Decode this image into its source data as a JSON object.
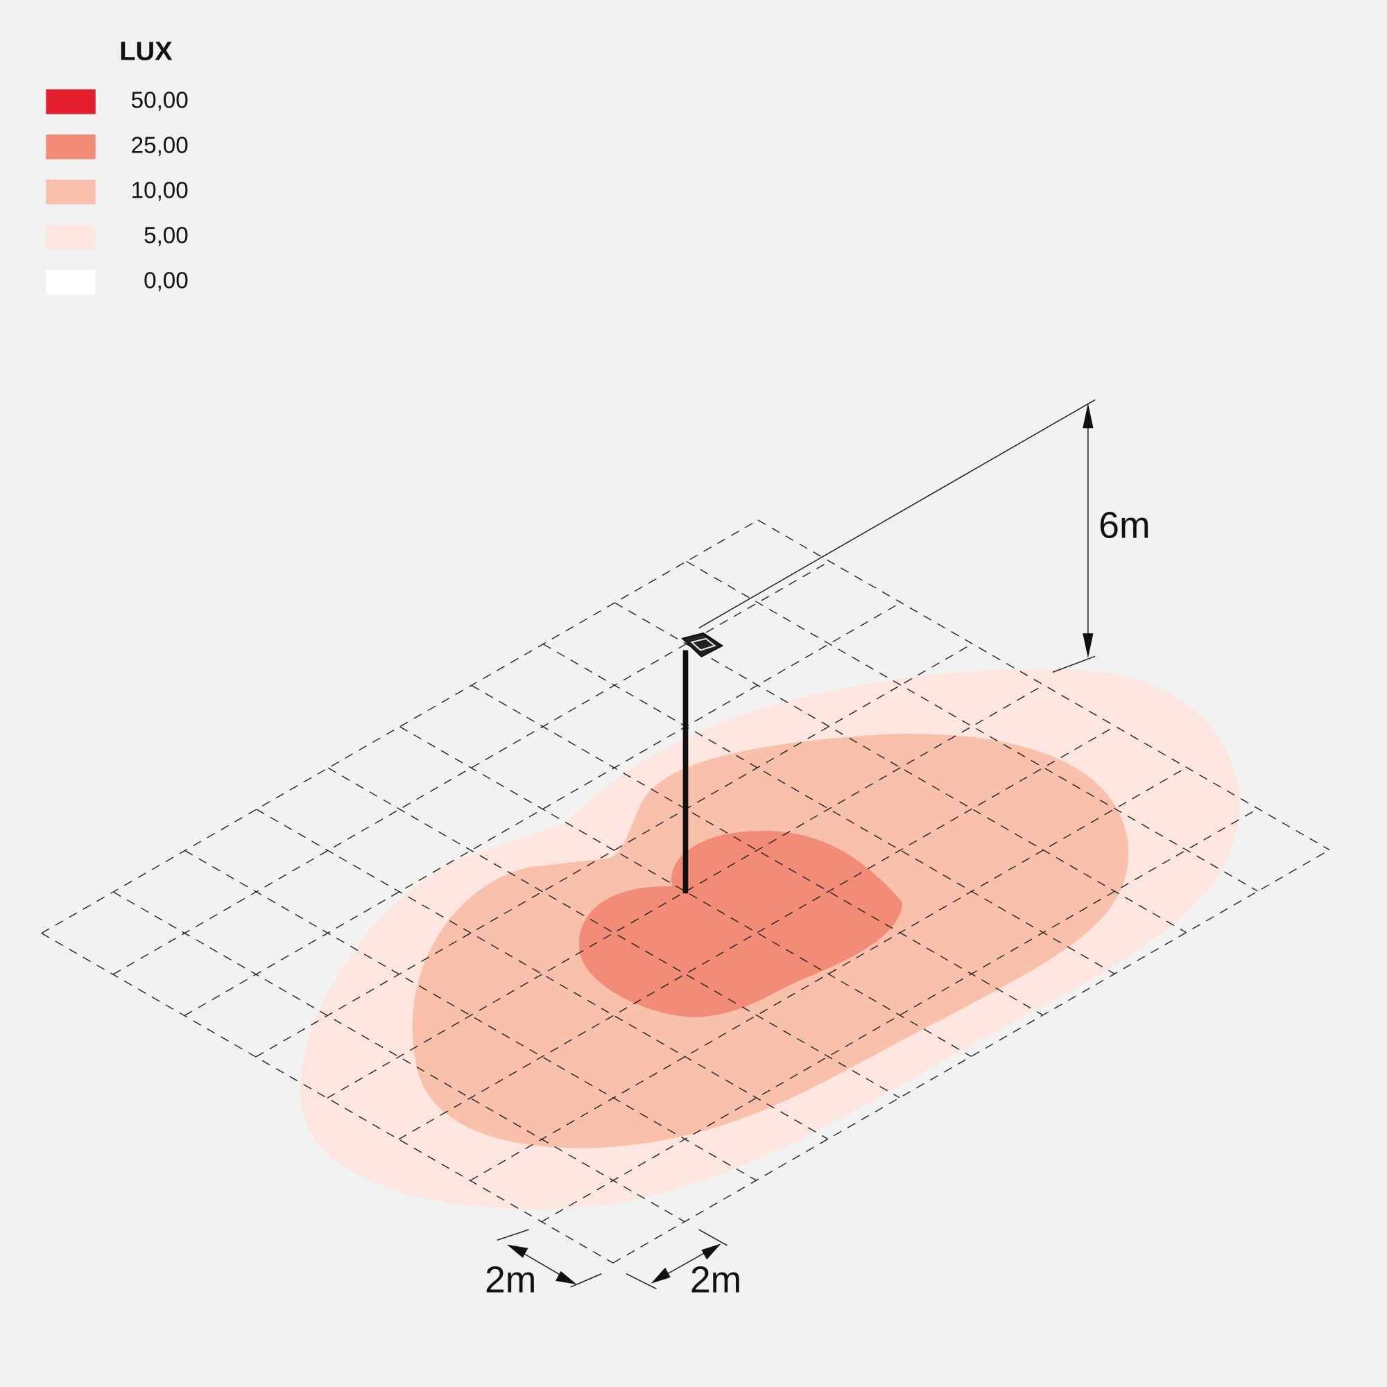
{
  "legend": {
    "title": "LUX",
    "items": [
      {
        "label": "50,00",
        "color": "#e31e2d"
      },
      {
        "label": "25,00",
        "color": "#f28c77"
      },
      {
        "label": "10,00",
        "color": "#f9c0ab"
      },
      {
        "label": "5,00",
        "color": "#fde6df"
      },
      {
        "label": "0,00",
        "color": "#ffffff"
      }
    ]
  },
  "dimensions": {
    "height": "6m",
    "grid_x": "2m",
    "grid_y": "2m"
  }
}
